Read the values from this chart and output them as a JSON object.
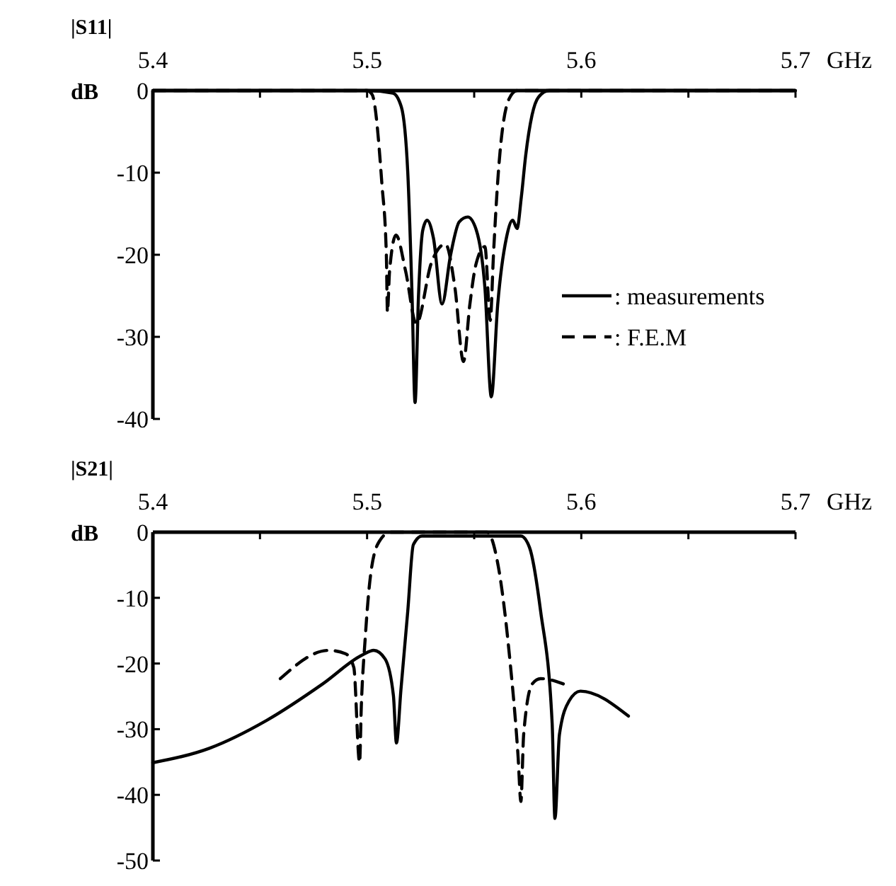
{
  "chart_data": [
    {
      "type": "line",
      "title": "|S11|",
      "ylabel": "dB",
      "xlabel": "GHz",
      "xlim": [
        5.4,
        5.7
      ],
      "ylim": [
        -40,
        0
      ],
      "xticks": [
        5.4,
        {
          "value": 5.45,
          "label": null
        },
        5.5,
        {
          "value": 5.55,
          "label": null
        },
        5.6,
        {
          "value": 5.65,
          "label": null
        },
        5.7
      ],
      "yticks": [
        0,
        -10,
        -20,
        -30,
        -40
      ],
      "legend": "right",
      "grid": false,
      "series": [
        {
          "name": ": measurements",
          "color": "#000000",
          "line_style": "solid",
          "x": [
            5.4,
            5.5,
            5.512,
            5.516,
            5.519,
            5.521,
            5.5224,
            5.524,
            5.526,
            5.528,
            5.531,
            5.535,
            5.539,
            5.543,
            5.547,
            5.551,
            5.555,
            5.558,
            5.561,
            5.565,
            5.568,
            5.57,
            5.572,
            5.574,
            5.577,
            5.58,
            5.585,
            5.7
          ],
          "values": [
            0,
            0,
            -0.3,
            -2,
            -10,
            -25,
            -38,
            -25,
            -17,
            -15.8,
            -18,
            -26,
            -20,
            -16,
            -15.4,
            -17,
            -24,
            -37.3,
            -26,
            -18,
            -15.8,
            -16.8,
            -13,
            -8,
            -3,
            -0.8,
            0,
            0
          ]
        },
        {
          "name": ": F.E.M",
          "color": "#000000",
          "line_style": "dashed",
          "x": [
            5.4,
            5.5,
            5.5024,
            5.5069,
            5.509,
            5.5095,
            5.5105,
            5.5135,
            5.518,
            5.523,
            5.53,
            5.5366,
            5.541,
            5.545,
            5.548,
            5.5507,
            5.555,
            5.5575,
            5.559,
            5.561,
            5.5663,
            5.57,
            5.7
          ],
          "values": [
            0,
            0,
            -0.5,
            -11.3,
            -20,
            -27,
            -22,
            -17.6,
            -22,
            -28.4,
            -21,
            -18.7,
            -24,
            -33,
            -26,
            -21.3,
            -19,
            -28,
            -20,
            -11,
            -1,
            0,
            0
          ]
        }
      ]
    },
    {
      "type": "line",
      "title": "|S21|",
      "ylabel": "dB",
      "xlabel": "GHz",
      "xlim": [
        5.4,
        5.7
      ],
      "ylim": [
        -50,
        0
      ],
      "xticks": [
        5.4,
        {
          "value": 5.45,
          "label": null
        },
        5.5,
        {
          "value": 5.55,
          "label": null
        },
        5.6,
        {
          "value": 5.65,
          "label": null
        },
        5.7
      ],
      "yticks": [
        0,
        -10,
        -20,
        -30,
        -40,
        -50
      ],
      "legend": false,
      "grid": false,
      "series": [
        {
          "color": "#000000",
          "line_style": "solid",
          "x": [
            5.4,
            5.4264,
            5.4529,
            5.4793,
            5.4978,
            5.5031,
            5.5084,
            5.5123,
            5.5137,
            5.5158,
            5.519,
            5.5216,
            5.5256,
            5.5718,
            5.5758,
            5.581,
            5.5864,
            5.5877,
            5.5898,
            5.5943,
            5.5996,
            5.622
          ],
          "values": [
            -35.1,
            -32.9,
            -28.7,
            -23.1,
            -18.7,
            -18,
            -19.3,
            -24.9,
            -32.1,
            -24,
            -12,
            -1.9,
            -0.6,
            -0.6,
            -2.3,
            -12,
            -29.1,
            -43.6,
            -30.8,
            -25.7,
            -24.2,
            -28
          ]
        },
        {
          "color": "#000000",
          "line_style": "dashed",
          "x": [
            5.4595,
            5.482,
            5.4899,
            5.4938,
            5.4965,
            5.4973,
            5.4991,
            5.5018,
            5.5057,
            5.511,
            5.556,
            5.5613,
            5.5665,
            5.5705,
            5.5718,
            5.5731,
            5.5771,
            5.581,
            5.5916
          ],
          "values": [
            -22.3,
            -18,
            -18.5,
            -20.6,
            -35.1,
            -26.6,
            -16.3,
            -6.1,
            -1.4,
            0,
            0,
            -5.3,
            -18.9,
            -34.2,
            -41,
            -30.8,
            -23.1,
            -22.3,
            -23.1
          ]
        }
      ]
    }
  ]
}
